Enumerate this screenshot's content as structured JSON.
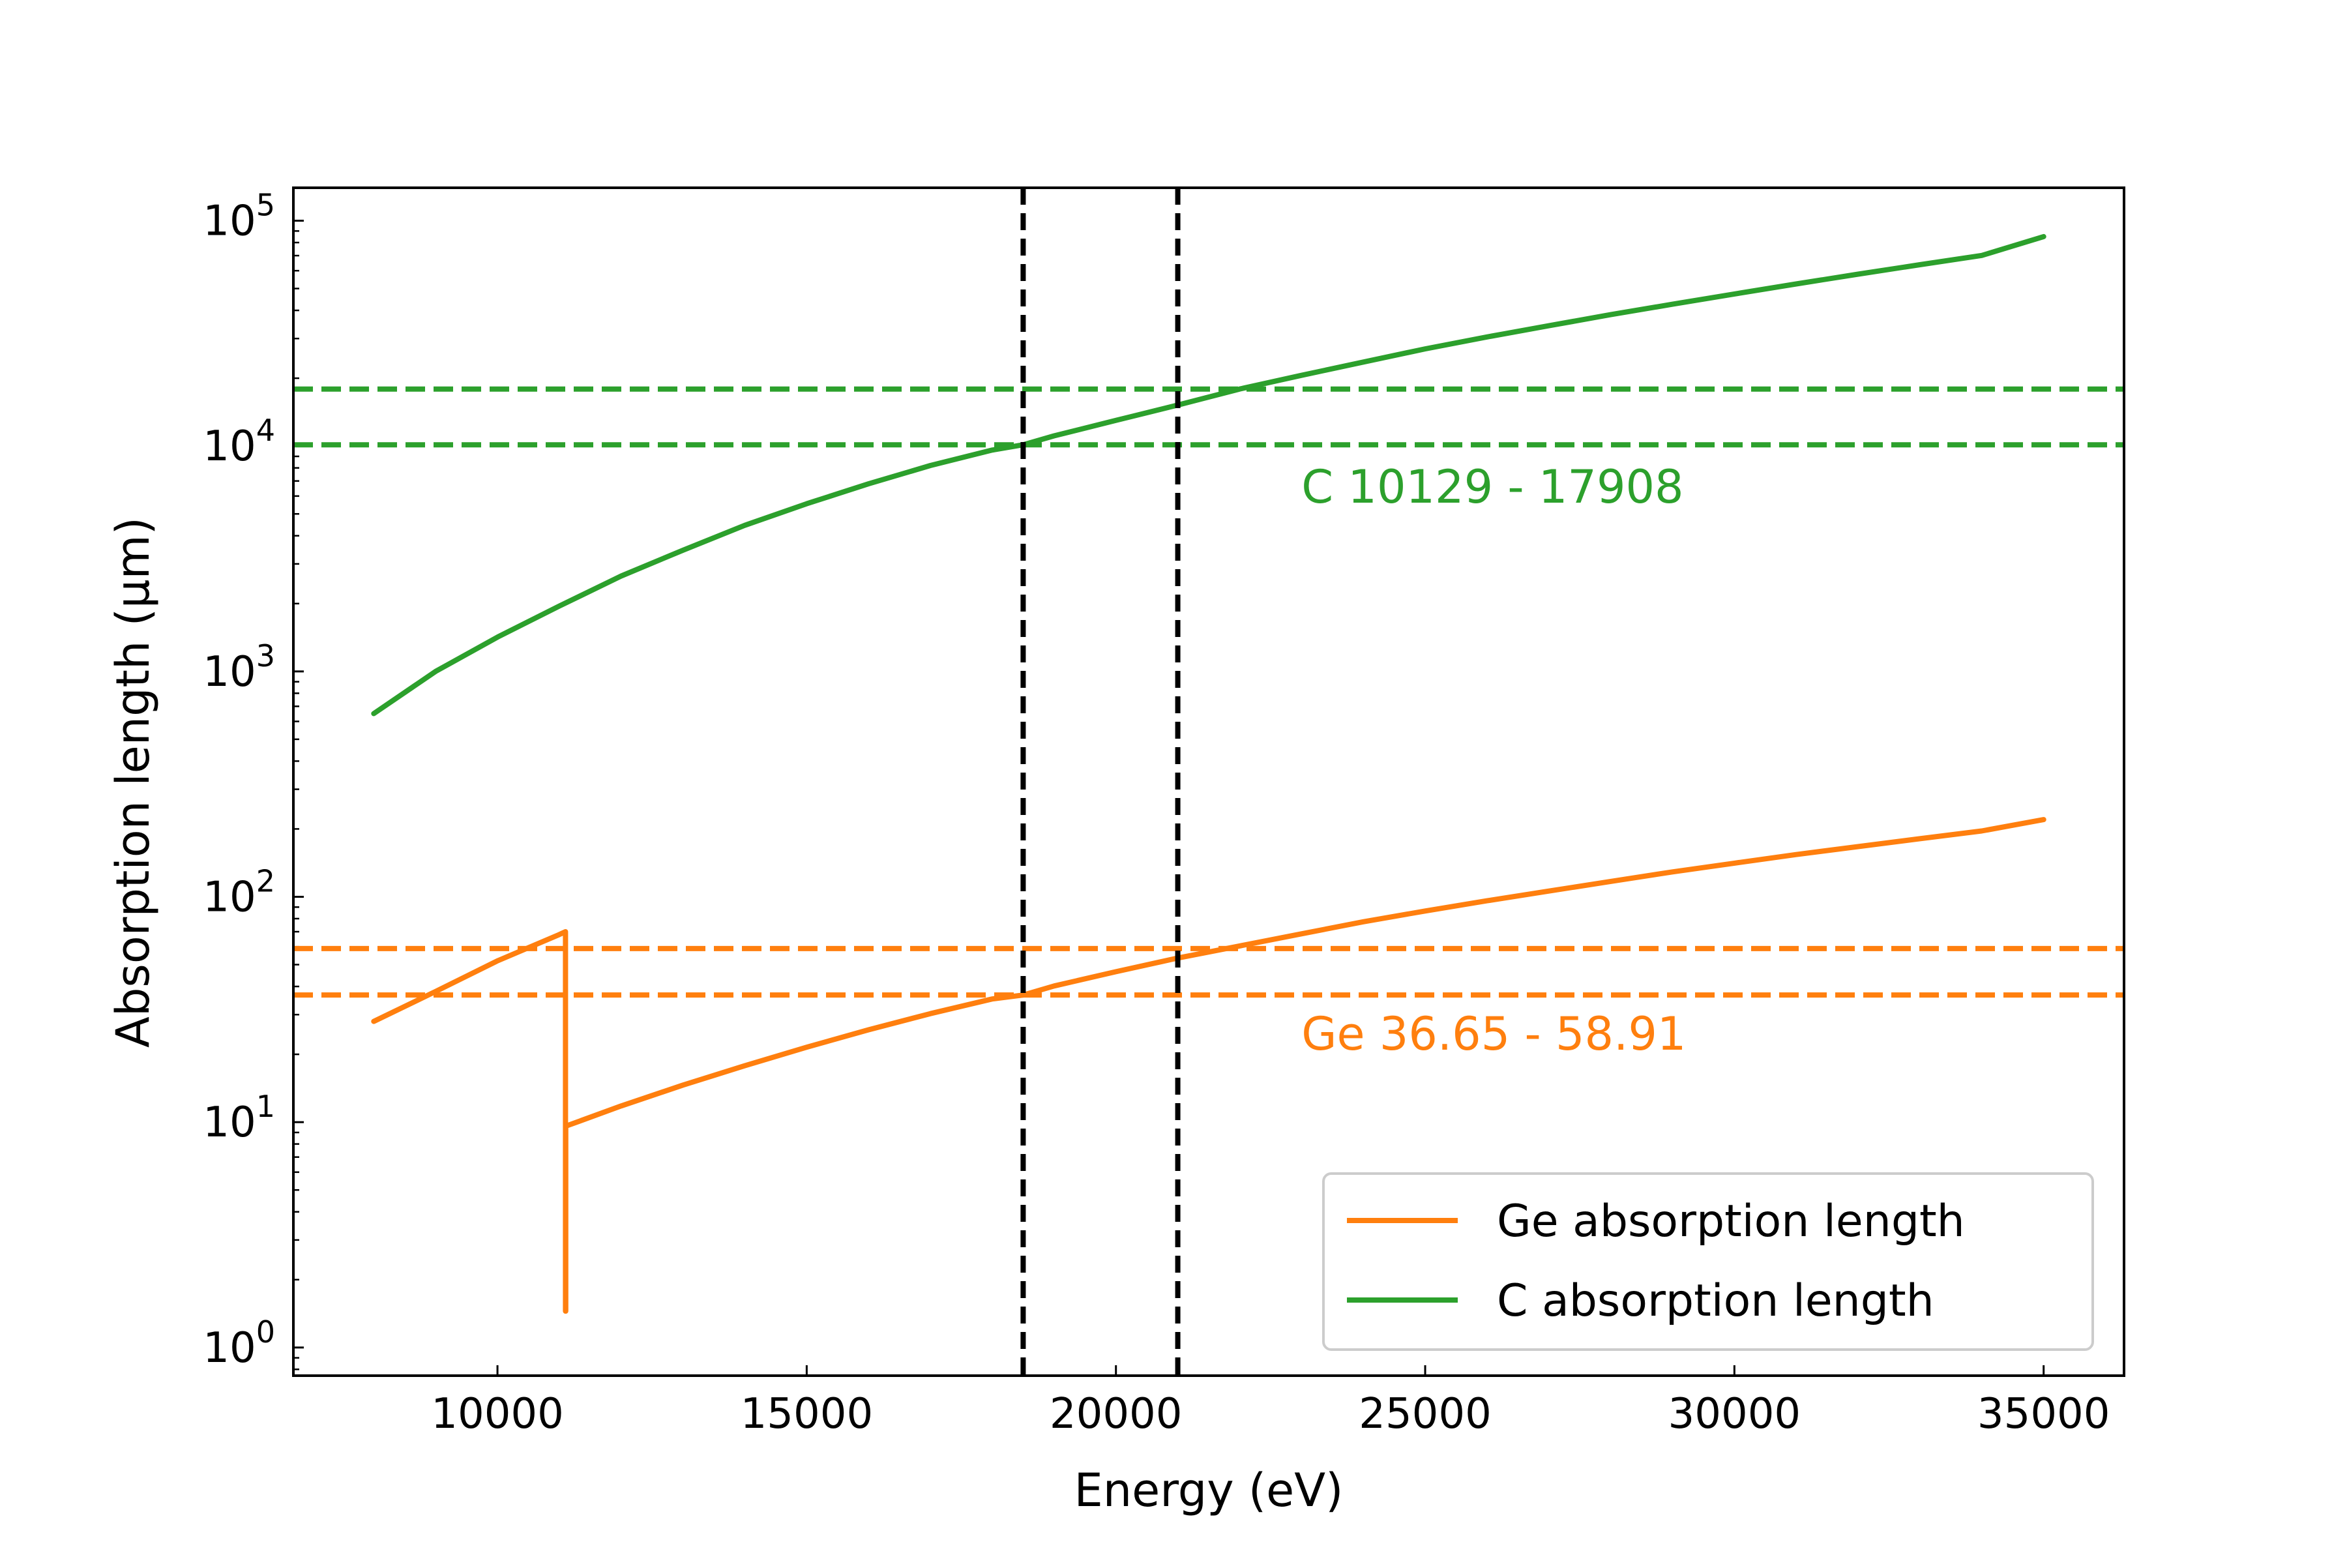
{
  "chart_data": {
    "type": "line",
    "xlabel": "Energy (eV)",
    "ylabel": "Absorption length (µm)",
    "yscale": "log",
    "xlim": [
      6700,
      36300
    ],
    "ylim": [
      0.75,
      140000
    ],
    "grid": false,
    "legend_position": "bottom-right",
    "colors": {
      "ge": "#ff7f0e",
      "c": "#2ca02c",
      "reference": "#000000"
    },
    "x_ticks": [
      {
        "value": 10000,
        "label": "10000"
      },
      {
        "value": 15000,
        "label": "15000"
      },
      {
        "value": 20000,
        "label": "20000"
      },
      {
        "value": 25000,
        "label": "25000"
      },
      {
        "value": 30000,
        "label": "30000"
      },
      {
        "value": 35000,
        "label": "35000"
      }
    ],
    "y_ticks": [
      {
        "value": 1,
        "base": "10",
        "exp": "0"
      },
      {
        "value": 10,
        "base": "10",
        "exp": "1"
      },
      {
        "value": 100,
        "base": "10",
        "exp": "2"
      },
      {
        "value": 1000,
        "base": "10",
        "exp": "3"
      },
      {
        "value": 10000,
        "base": "10",
        "exp": "4"
      },
      {
        "value": 100000,
        "base": "10",
        "exp": "5"
      }
    ],
    "series": [
      {
        "name": "Ge absorption length",
        "color": "#ff7f0e",
        "x": [
          8000,
          9000,
          10000,
          11000,
          11100,
          11100,
          11104,
          11104,
          12000,
          13000,
          14000,
          15000,
          16000,
          17000,
          18000,
          18500,
          19000,
          20000,
          21000,
          22000,
          23000,
          24000,
          25000,
          26000,
          27000,
          28000,
          29000,
          30000,
          31000,
          32000,
          33000,
          34000,
          35000
        ],
        "y": [
          28,
          38,
          52,
          68,
          70,
          1.45,
          1.45,
          9.6,
          11.8,
          14.6,
          17.8,
          21.5,
          25.7,
          30.3,
          35.2,
          36.65,
          40.2,
          46.5,
          53.5,
          60.5,
          68.5,
          77.5,
          86.5,
          96,
          106,
          117,
          129,
          141,
          154,
          167,
          181,
          196,
          220
        ]
      },
      {
        "name": "C absorption length",
        "color": "#2ca02c",
        "x": [
          8000,
          9000,
          10000,
          11000,
          12000,
          13000,
          14000,
          15000,
          16000,
          17000,
          18000,
          18500,
          19000,
          20000,
          21000,
          22000,
          23000,
          24000,
          25000,
          26000,
          27000,
          28000,
          29000,
          30000,
          31000,
          32000,
          33000,
          34000,
          35000
        ],
        "y": [
          650,
          1000,
          1420,
          1950,
          2650,
          3450,
          4450,
          5550,
          6800,
          8200,
          9600,
          10129,
          11100,
          13000,
          15200,
          17908,
          20600,
          23600,
          27000,
          30500,
          34200,
          38300,
          42600,
          47300,
          52400,
          57900,
          63800,
          70100,
          85000
        ]
      }
    ],
    "vertical_lines": [
      {
        "x": 18500,
        "color": "#000000",
        "style": "dashed"
      },
      {
        "x": 21000,
        "color": "#000000",
        "style": "dashed"
      }
    ],
    "horizontal_lines": [
      {
        "y": 17908,
        "color": "#2ca02c",
        "style": "dashed"
      },
      {
        "y": 10129,
        "color": "#2ca02c",
        "style": "dashed"
      },
      {
        "y": 58.91,
        "color": "#ff7f0e",
        "style": "dashed"
      },
      {
        "y": 36.65,
        "color": "#ff7f0e",
        "style": "dashed"
      }
    ],
    "annotations": [
      {
        "text": "C 10129 - 17908",
        "x": 23000,
        "y": 5600,
        "color": "#2ca02c"
      },
      {
        "text": "Ge 36.65 - 58.91",
        "x": 23000,
        "y": 21,
        "color": "#ff7f0e"
      }
    ],
    "legend": [
      {
        "label": "Ge absorption length",
        "color": "#ff7f0e"
      },
      {
        "label": "C absorption length",
        "color": "#2ca02c"
      }
    ]
  }
}
